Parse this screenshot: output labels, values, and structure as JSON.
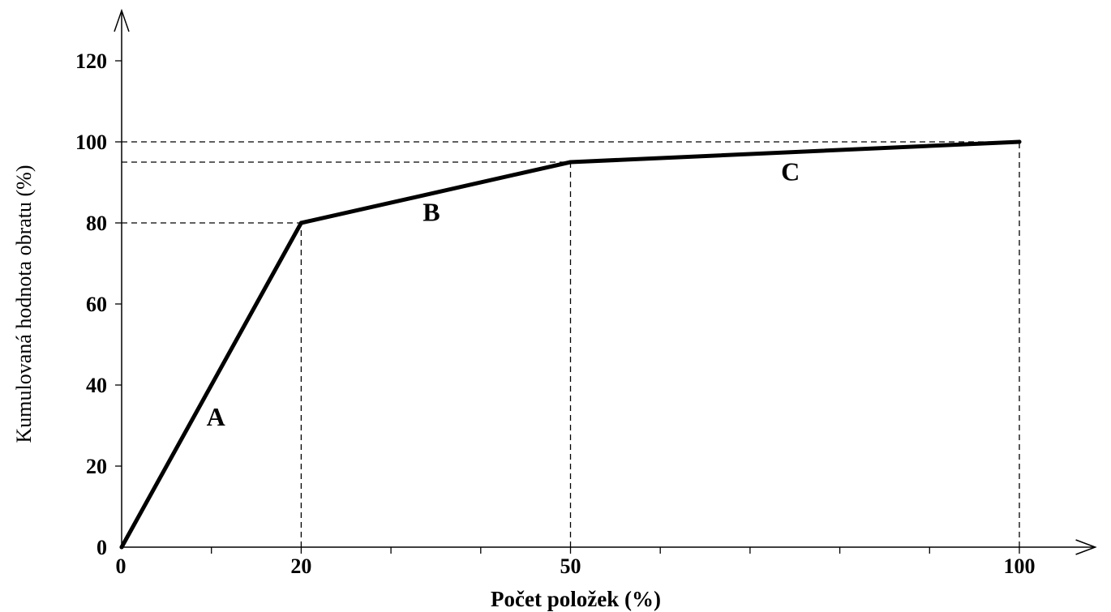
{
  "chart_data": {
    "type": "line",
    "xlabel": "Počet položek (%)",
    "ylabel": "Kumulovaná hodnota obratu (%)",
    "xlim": [
      0,
      108
    ],
    "ylim": [
      0,
      132
    ],
    "x_tick_labels": [
      "0",
      "20",
      "50",
      "100"
    ],
    "y_tick_labels": [
      "0",
      "20",
      "40",
      "60",
      "80",
      "100",
      "120"
    ],
    "series": [
      {
        "x": [
          0,
          20,
          50,
          100
        ],
        "y": [
          0,
          80,
          95,
          100
        ]
      }
    ],
    "region_labels": [
      {
        "text": "A",
        "x": 10.5,
        "y": 30
      },
      {
        "text": "B",
        "x": 34.5,
        "y": 80.5
      },
      {
        "text": "C",
        "x": 74.5,
        "y": 90.5
      }
    ],
    "reference_lines": [
      {
        "from": [
          0,
          80
        ],
        "to": [
          20,
          80
        ]
      },
      {
        "from": [
          0,
          95
        ],
        "to": [
          50,
          95
        ]
      },
      {
        "from": [
          0,
          100
        ],
        "to": [
          100,
          100
        ]
      },
      {
        "from": [
          20,
          0
        ],
        "to": [
          20,
          80
        ]
      },
      {
        "from": [
          50,
          0
        ],
        "to": [
          50,
          95
        ]
      },
      {
        "from": [
          100,
          0
        ],
        "to": [
          100,
          100
        ]
      }
    ],
    "grid": false,
    "legend": "none"
  }
}
